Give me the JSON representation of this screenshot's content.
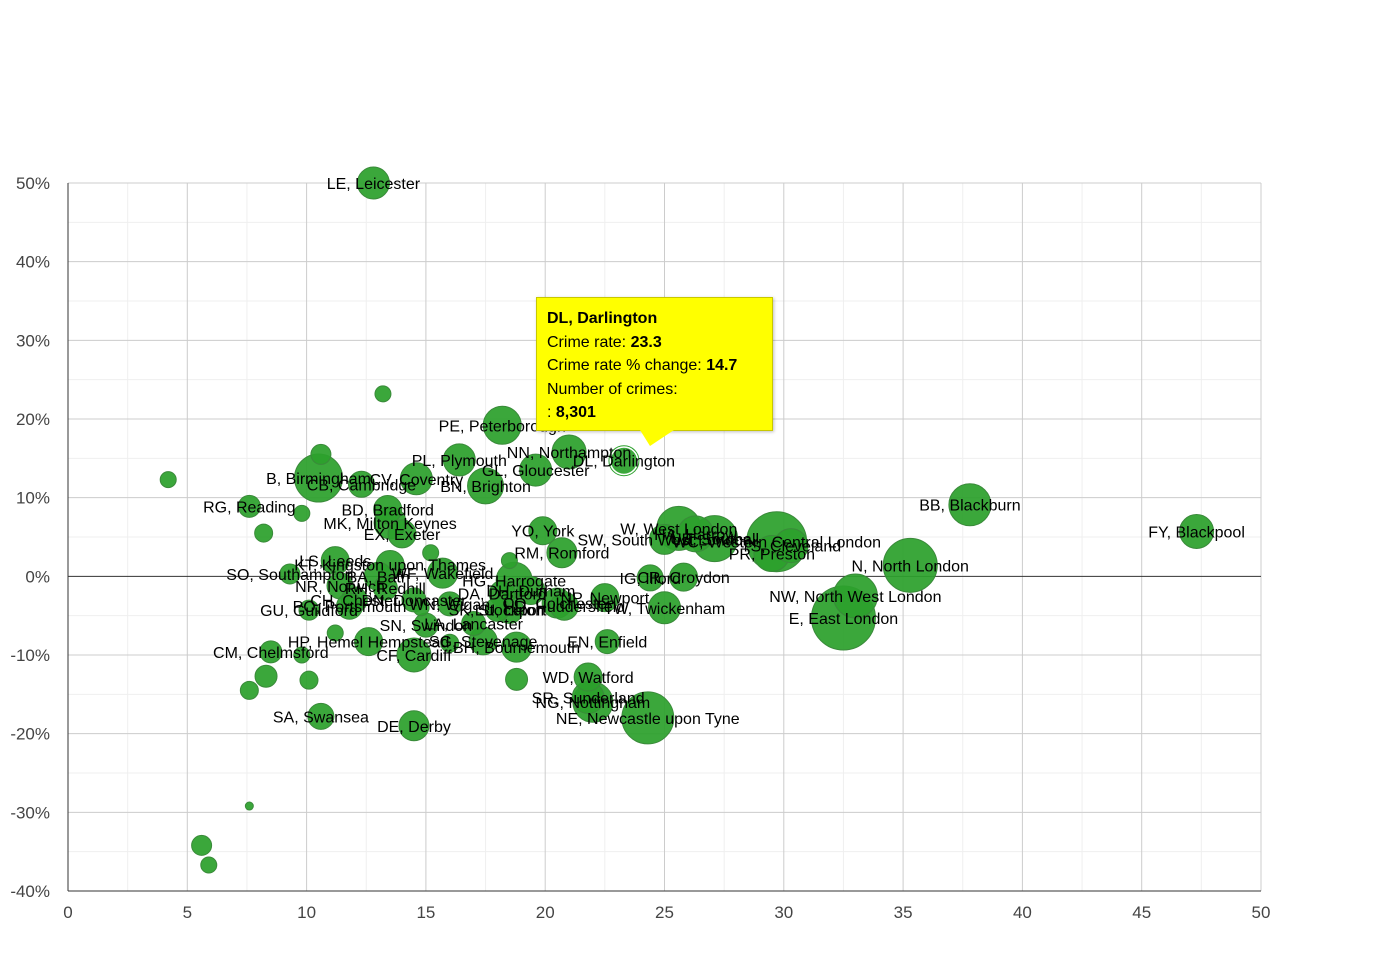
{
  "chart_data": {
    "type": "scatter",
    "title": "",
    "xlabel": "",
    "ylabel": "",
    "xlim": [
      0,
      50
    ],
    "ylim": [
      -40,
      50
    ],
    "x_ticks": [
      "0",
      "5",
      "10",
      "15",
      "20",
      "25",
      "30",
      "35",
      "40",
      "45",
      "50"
    ],
    "y_ticks": [
      "50%",
      "40%",
      "30%",
      "20%",
      "10%",
      "0%",
      "-10%",
      "-20%",
      "-30%",
      "-40%"
    ],
    "grid": true,
    "bubble_color": "#2ca02c",
    "points": [
      {
        "label": "LE, Leicester",
        "x": 12.8,
        "y": 50.0,
        "r": 16
      },
      {
        "label": "",
        "x": 13.2,
        "y": 23.2,
        "r": 8
      },
      {
        "label": "PE, Peterborough",
        "x": 18.2,
        "y": 19.2,
        "r": 19
      },
      {
        "label": "NN, Northampton",
        "x": 21.0,
        "y": 15.8,
        "r": 17
      },
      {
        "label": "DL, Darlington",
        "x": 23.3,
        "y": 14.7,
        "r": 14
      },
      {
        "label": "PL, Plymouth",
        "x": 16.4,
        "y": 14.8,
        "r": 16
      },
      {
        "label": "GL, Gloucester",
        "x": 19.6,
        "y": 13.5,
        "r": 16
      },
      {
        "label": "BN, Brighton",
        "x": 17.5,
        "y": 11.5,
        "r": 18
      },
      {
        "label": "CV, Coventry",
        "x": 14.6,
        "y": 12.4,
        "r": 16
      },
      {
        "label": "B, Birmingham",
        "x": 10.5,
        "y": 12.5,
        "r": 24
      },
      {
        "label": "",
        "x": 10.6,
        "y": 15.5,
        "r": 10
      },
      {
        "label": "",
        "x": 4.2,
        "y": 12.3,
        "r": 8
      },
      {
        "label": "CB, Cambridge",
        "x": 12.3,
        "y": 11.7,
        "r": 13
      },
      {
        "label": "RG, Reading",
        "x": 7.6,
        "y": 8.9,
        "r": 11
      },
      {
        "label": "BD, Bradford",
        "x": 13.4,
        "y": 8.5,
        "r": 14
      },
      {
        "label": "",
        "x": 9.8,
        "y": 8.0,
        "r": 8
      },
      {
        "label": "MK, Milton Keynes",
        "x": 13.5,
        "y": 6.8,
        "r": 16
      },
      {
        "label": "",
        "x": 8.2,
        "y": 5.5,
        "r": 9
      },
      {
        "label": "EX, Exeter",
        "x": 14.0,
        "y": 5.4,
        "r": 14
      },
      {
        "label": "YO, York",
        "x": 19.9,
        "y": 5.8,
        "r": 14
      },
      {
        "label": "RM, Romford",
        "x": 20.7,
        "y": 3.0,
        "r": 15
      },
      {
        "label": "BB, Blackburn",
        "x": 37.8,
        "y": 9.1,
        "r": 21
      },
      {
        "label": "FY, Blackpool",
        "x": 47.3,
        "y": 5.7,
        "r": 17
      },
      {
        "label": "W, West London",
        "x": 25.6,
        "y": 6.1,
        "r": 22
      },
      {
        "label": "HA, Harrow",
        "x": 26.3,
        "y": 5.4,
        "r": 18
      },
      {
        "label": "UB, Southall",
        "x": 27.1,
        "y": 4.8,
        "r": 23
      },
      {
        "label": "SW, South West London",
        "x": 25.0,
        "y": 4.7,
        "r": 15
      },
      {
        "label": "WC, Western Central London",
        "x": 29.7,
        "y": 4.4,
        "r": 30
      },
      {
        "label": "TS, Cleveland",
        "x": 30.3,
        "y": 3.9,
        "r": 17
      },
      {
        "label": "PR, Preston",
        "x": 29.5,
        "y": 2.9,
        "r": 18
      },
      {
        "label": "N, North London",
        "x": 35.3,
        "y": 1.4,
        "r": 27
      },
      {
        "label": "LS, Leeds",
        "x": 11.2,
        "y": 2.0,
        "r": 14
      },
      {
        "label": "KT, Kingston upon Thames",
        "x": 13.5,
        "y": 1.5,
        "r": 14
      },
      {
        "label": "",
        "x": 15.2,
        "y": 3.0,
        "r": 8
      },
      {
        "label": "BA, Bath",
        "x": 13.0,
        "y": 0.0,
        "r": 14
      },
      {
        "label": "WF, Wakefield",
        "x": 15.7,
        "y": 0.4,
        "r": 15
      },
      {
        "label": "",
        "x": 18.5,
        "y": 2.0,
        "r": 8
      },
      {
        "label": "SO, Southampton",
        "x": 9.3,
        "y": 0.3,
        "r": 10
      },
      {
        "label": "NR, Norwich",
        "x": 11.4,
        "y": -1.2,
        "r": 13
      },
      {
        "label": "RH, Redhill",
        "x": 13.3,
        "y": -1.5,
        "r": 12
      },
      {
        "label": "HG, Harrogate",
        "x": 18.7,
        "y": -0.5,
        "r": 18
      },
      {
        "label": "DH, Durham",
        "x": 19.4,
        "y": -1.8,
        "r": 14
      },
      {
        "label": "DA, Dartford",
        "x": 18.2,
        "y": -2.2,
        "r": 13
      },
      {
        "label": "IG, Ilford",
        "x": 24.4,
        "y": -0.2,
        "r": 13
      },
      {
        "label": "CR, Croydon",
        "x": 25.8,
        "y": -0.1,
        "r": 14
      },
      {
        "label": "CH, Chester",
        "x": 12.0,
        "y": -3.0,
        "r": 13
      },
      {
        "label": "DN, Doncaster",
        "x": 14.5,
        "y": -3.0,
        "r": 12
      },
      {
        "label": "PO, Portsmouth",
        "x": 11.8,
        "y": -3.8,
        "r": 13
      },
      {
        "label": "WN, Wigan",
        "x": 16.0,
        "y": -3.5,
        "r": 12
      },
      {
        "label": "CO, Colchester",
        "x": 20.5,
        "y": -3.4,
        "r": 15
      },
      {
        "label": "NP, Newport",
        "x": 22.5,
        "y": -2.7,
        "r": 14
      },
      {
        "label": "LU, Luton",
        "x": 18.5,
        "y": -4.2,
        "r": 14
      },
      {
        "label": "SK, Stockport",
        "x": 18.0,
        "y": -4.2,
        "r": 12
      },
      {
        "label": "HD, Huddersfield",
        "x": 20.8,
        "y": -3.8,
        "r": 14
      },
      {
        "label": "TW, Twickenham",
        "x": 25.0,
        "y": -4.0,
        "r": 16
      },
      {
        "label": "GU, Guildford",
        "x": 10.1,
        "y": -4.3,
        "r": 10
      },
      {
        "label": "",
        "x": 14.8,
        "y": -4.0,
        "r": 8
      },
      {
        "label": "LA, Lancaster",
        "x": 17.0,
        "y": -6.0,
        "r": 12
      },
      {
        "label": "SN, Swindon",
        "x": 15.0,
        "y": -6.2,
        "r": 12
      },
      {
        "label": "NW, North West London",
        "x": 33.0,
        "y": -2.5,
        "r": 22
      },
      {
        "label": "E, East London",
        "x": 32.5,
        "y": -5.3,
        "r": 32
      },
      {
        "label": "",
        "x": 11.2,
        "y": -7.2,
        "r": 8
      },
      {
        "label": "HP, Hemel Hempstead",
        "x": 12.6,
        "y": -8.3,
        "r": 14
      },
      {
        "label": "SG, Stevenage",
        "x": 17.4,
        "y": -8.2,
        "r": 14
      },
      {
        "label": "EN, Enfield",
        "x": 22.6,
        "y": -8.3,
        "r": 12
      },
      {
        "label": "BH, Bournemouth",
        "x": 18.8,
        "y": -9.0,
        "r": 15
      },
      {
        "label": "",
        "x": 16.0,
        "y": -8.5,
        "r": 9
      },
      {
        "label": "CF, Cardiff",
        "x": 14.5,
        "y": -10.0,
        "r": 17
      },
      {
        "label": "CM, Chelmsford",
        "x": 8.5,
        "y": -9.6,
        "r": 11
      },
      {
        "label": "",
        "x": 9.8,
        "y": -10.0,
        "r": 8
      },
      {
        "label": "",
        "x": 8.3,
        "y": -12.7,
        "r": 11
      },
      {
        "label": "",
        "x": 10.1,
        "y": -13.2,
        "r": 9
      },
      {
        "label": "",
        "x": 7.6,
        "y": -14.5,
        "r": 9
      },
      {
        "label": "",
        "x": 18.8,
        "y": -13.1,
        "r": 11
      },
      {
        "label": "WD, Watford",
        "x": 21.8,
        "y": -12.8,
        "r": 14
      },
      {
        "label": "SR, Sunderland",
        "x": 21.8,
        "y": -15.4,
        "r": 16
      },
      {
        "label": "NG, Nottingham",
        "x": 22.0,
        "y": -16.0,
        "r": 20
      },
      {
        "label": "NE, Newcastle upon Tyne",
        "x": 24.3,
        "y": -18.0,
        "r": 26
      },
      {
        "label": "SA, Swansea",
        "x": 10.6,
        "y": -17.8,
        "r": 13
      },
      {
        "label": "DE, Derby",
        "x": 14.5,
        "y": -19.0,
        "r": 15
      },
      {
        "label": "",
        "x": 7.6,
        "y": -29.2,
        "r": 4
      },
      {
        "label": "",
        "x": 5.6,
        "y": -34.2,
        "r": 10
      },
      {
        "label": "",
        "x": 5.9,
        "y": -36.7,
        "r": 8
      }
    ],
    "highlight": "DL, Darlington"
  },
  "tooltip": {
    "title": "DL, Darlington",
    "crime_rate_label": "Crime rate: ",
    "crime_rate_value": "23.3",
    "change_label": "Crime rate % change: ",
    "change_value": "14.7",
    "crimes_label": "Number of crimes:",
    "crimes_prefix": ": ",
    "crimes_value": "8,301"
  }
}
